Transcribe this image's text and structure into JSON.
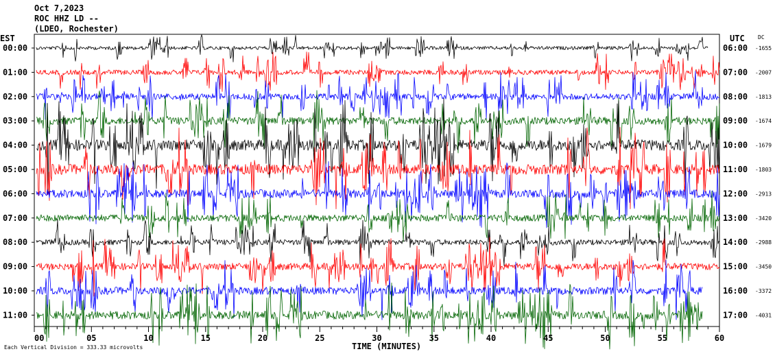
{
  "header": {
    "date": "Oct 7,2023",
    "station": "ROC HHZ LD --",
    "network": "(LDEO, Rochester)"
  },
  "axes": {
    "left_tz": "EST",
    "right_tz": "UTC",
    "dc_heading": "DC",
    "xlabel": "TIME (MINUTES)",
    "scale_note": "Each Vertical Division =  333.33 microvolts"
  },
  "chart_data": {
    "type": "line",
    "title": "",
    "xlabel": "TIME (MINUTES)",
    "ylabel": "",
    "xlim": [
      0,
      60
    ],
    "x_ticks": [
      "00",
      "05",
      "10",
      "15",
      "20",
      "25",
      "30",
      "35",
      "40",
      "45",
      "50",
      "55",
      "60"
    ],
    "trace_colors": [
      "#000000",
      "#ff0000",
      "#0000ff",
      "#006400"
    ],
    "rows": [
      {
        "est": "00:00",
        "utc": "06:00",
        "dc": "-1655",
        "amp": 0.5,
        "end": 59
      },
      {
        "est": "01:00",
        "utc": "07:00",
        "dc": "-2007",
        "amp": 0.7,
        "end": 60
      },
      {
        "est": "02:00",
        "utc": "08:00",
        "dc": "-1813",
        "amp": 0.9,
        "end": 60
      },
      {
        "est": "03:00",
        "utc": "09:00",
        "dc": "-1674",
        "amp": 1.1,
        "end": 60
      },
      {
        "est": "04:00",
        "utc": "10:00",
        "dc": "-1679",
        "amp": 1.6,
        "end": 60
      },
      {
        "est": "05:00",
        "utc": "11:00",
        "dc": "-1803",
        "amp": 1.5,
        "end": 60
      },
      {
        "est": "06:00",
        "utc": "12:00",
        "dc": "-2913",
        "amp": 1.2,
        "end": 60
      },
      {
        "est": "07:00",
        "utc": "13:00",
        "dc": "-3420",
        "amp": 1.0,
        "end": 60
      },
      {
        "est": "08:00",
        "utc": "14:00",
        "dc": "-2988",
        "amp": 0.8,
        "end": 60
      },
      {
        "est": "09:00",
        "utc": "15:00",
        "dc": "-3450",
        "amp": 1.0,
        "end": 60
      },
      {
        "est": "10:00",
        "utc": "16:00",
        "dc": "-3372",
        "amp": 1.1,
        "end": 58.5
      },
      {
        "est": "11:00",
        "utc": "17:00",
        "dc": "-4031",
        "amp": 1.2,
        "end": 58.5
      }
    ]
  }
}
